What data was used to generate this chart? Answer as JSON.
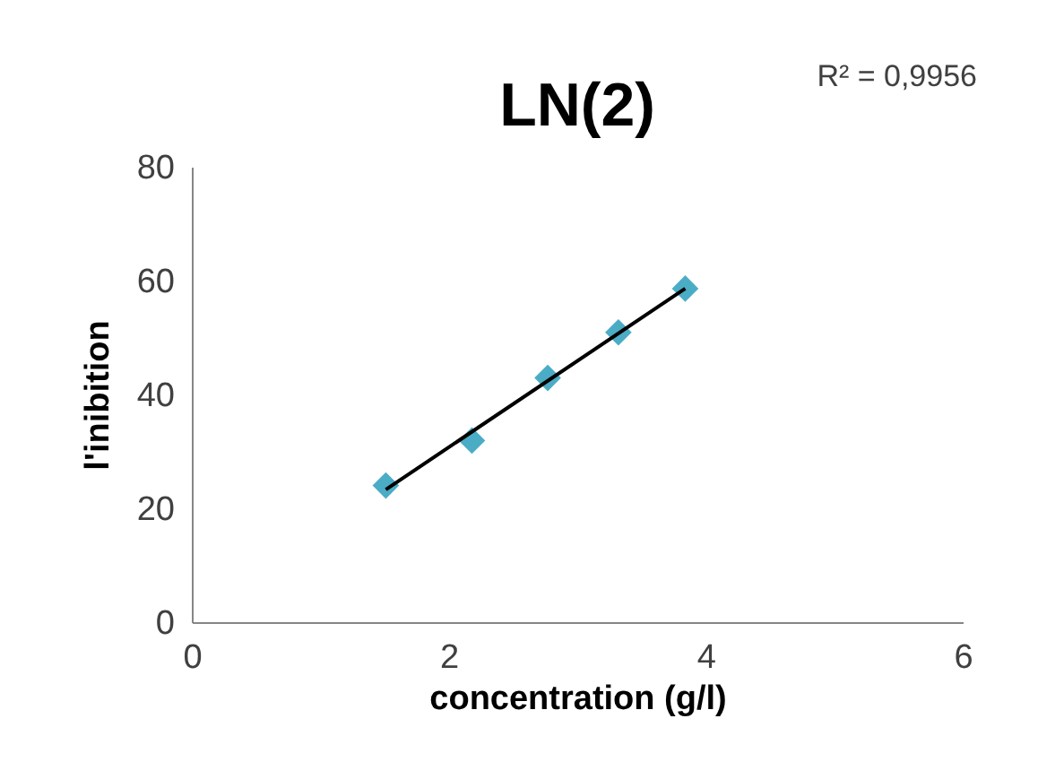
{
  "chart_data": {
    "type": "scatter",
    "title": "LN(2)",
    "xlabel": "concentration (g/l)",
    "ylabel": "l'inibition",
    "annotations": [
      "R² = 0,9956"
    ],
    "xlim": [
      0,
      6
    ],
    "xticks": [
      0,
      2,
      4,
      6
    ],
    "ylim": [
      0,
      80
    ],
    "yticks": [
      0,
      20,
      40,
      60,
      80
    ],
    "grid": false,
    "marker": "diamond",
    "series": [
      {
        "color": "#4bacc6",
        "x": [
          1.51,
          2.18,
          2.77,
          3.32,
          3.84
        ],
        "values": [
          24.0,
          31.9,
          42.9,
          50.9,
          58.6
        ]
      },
      {
        "type": "line",
        "color": "#000000",
        "marker": "none",
        "x": [
          1.51,
          3.84
        ],
        "values": [
          23.3,
          58.6
        ]
      }
    ]
  }
}
